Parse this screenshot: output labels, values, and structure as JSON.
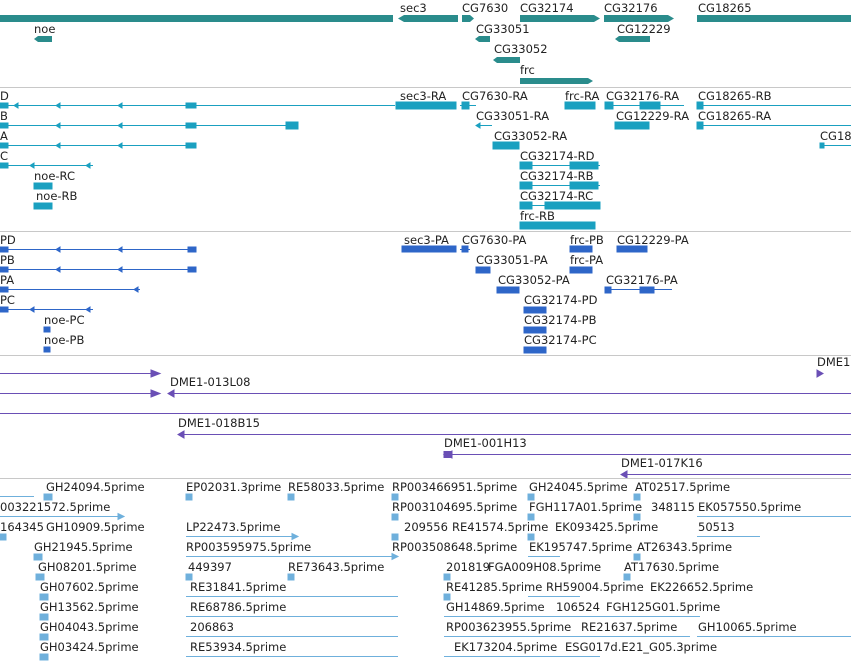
{
  "colors": {
    "genes": "#2a8c8c",
    "transcripts": "#1aa0c0",
    "proteins": "#2e66c8",
    "clones": "#6a4fb5",
    "ests": "#6fb0dc",
    "separator": "#c8c8c8"
  },
  "tracks": {
    "genes": {
      "labels": [
        "sec3",
        "CG7630",
        "CG32174",
        "CG32176",
        "CG18265",
        "noe",
        "CG33051",
        "CG12229",
        "CG33052",
        "frc"
      ]
    },
    "transcripts": {
      "labels": [
        "D",
        "B",
        "A",
        "C",
        "sec3-RA",
        "CG7630-RA",
        "frc-RA",
        "CG32176-RA",
        "CG18265-RB",
        "CG33051-RA",
        "CG12229-RA",
        "CG18265-RA",
        "CG33052-RA",
        "CG18",
        "noe-RC",
        "CG32174-RD",
        "CG32174-RB",
        "noe-RB",
        "CG32174-RC",
        "frc-RB"
      ]
    },
    "proteins": {
      "labels": [
        "PD",
        "PB",
        "PA",
        "PC",
        "sec3-PA",
        "CG7630-PA",
        "frc-PB",
        "CG12229-PA",
        "CG33051-PA",
        "frc-PA",
        "CG33052-PA",
        "CG32176-PA",
        "noe-PC",
        "CG32174-PD",
        "noe-PB",
        "CG32174-PB",
        "CG32174-PC"
      ]
    },
    "clones": {
      "labels": [
        "DME1",
        "DME1-013L08",
        "DME1-018B15",
        "DME1-001H13",
        "DME1-017K16"
      ]
    },
    "ests": {
      "labels": [
        "GH24094.5prime",
        "EP02031.3prime",
        "RE58033.5prime",
        "RP003466951.5prime",
        "GH24045.5prime",
        "AT02517.5prime",
        "003221572.5prime",
        "RP003104695.5prime",
        "FGH117A01.5prime",
        "348115",
        "EK057550.5prime",
        "164345",
        "GH10909.5prime",
        "LP22473.5prime",
        "209556",
        "RE41574.5prime",
        "EK093425.5prime",
        "50513",
        "GH21945.5prime",
        "RP003595975.5prime",
        "RP003508648.5prime",
        "EK195747.5prime",
        "AT26343.5prime",
        "GH08201.5prime",
        "449397",
        "RE73643.5prime",
        "201819",
        "FGA009H08.5prime",
        "AT17630.5prime",
        "GH07602.5prime",
        "RE31841.5prime",
        "RE41285.5prime",
        "RH59004.5prime",
        "EK226652.5prime",
        "GH13562.5prime",
        "RE68786.5prime",
        "GH14869.5prime",
        "106524",
        "FGH125G01.5prime",
        "GH04043.5prime",
        "206863",
        "RP003623955.5prime",
        "RE21637.5prime",
        "GH10065.5prime",
        "GH03424.5prime",
        "RE53934.5prime",
        "EK173204.5prime",
        "ESG017d.E21_G05.3prime"
      ]
    }
  }
}
